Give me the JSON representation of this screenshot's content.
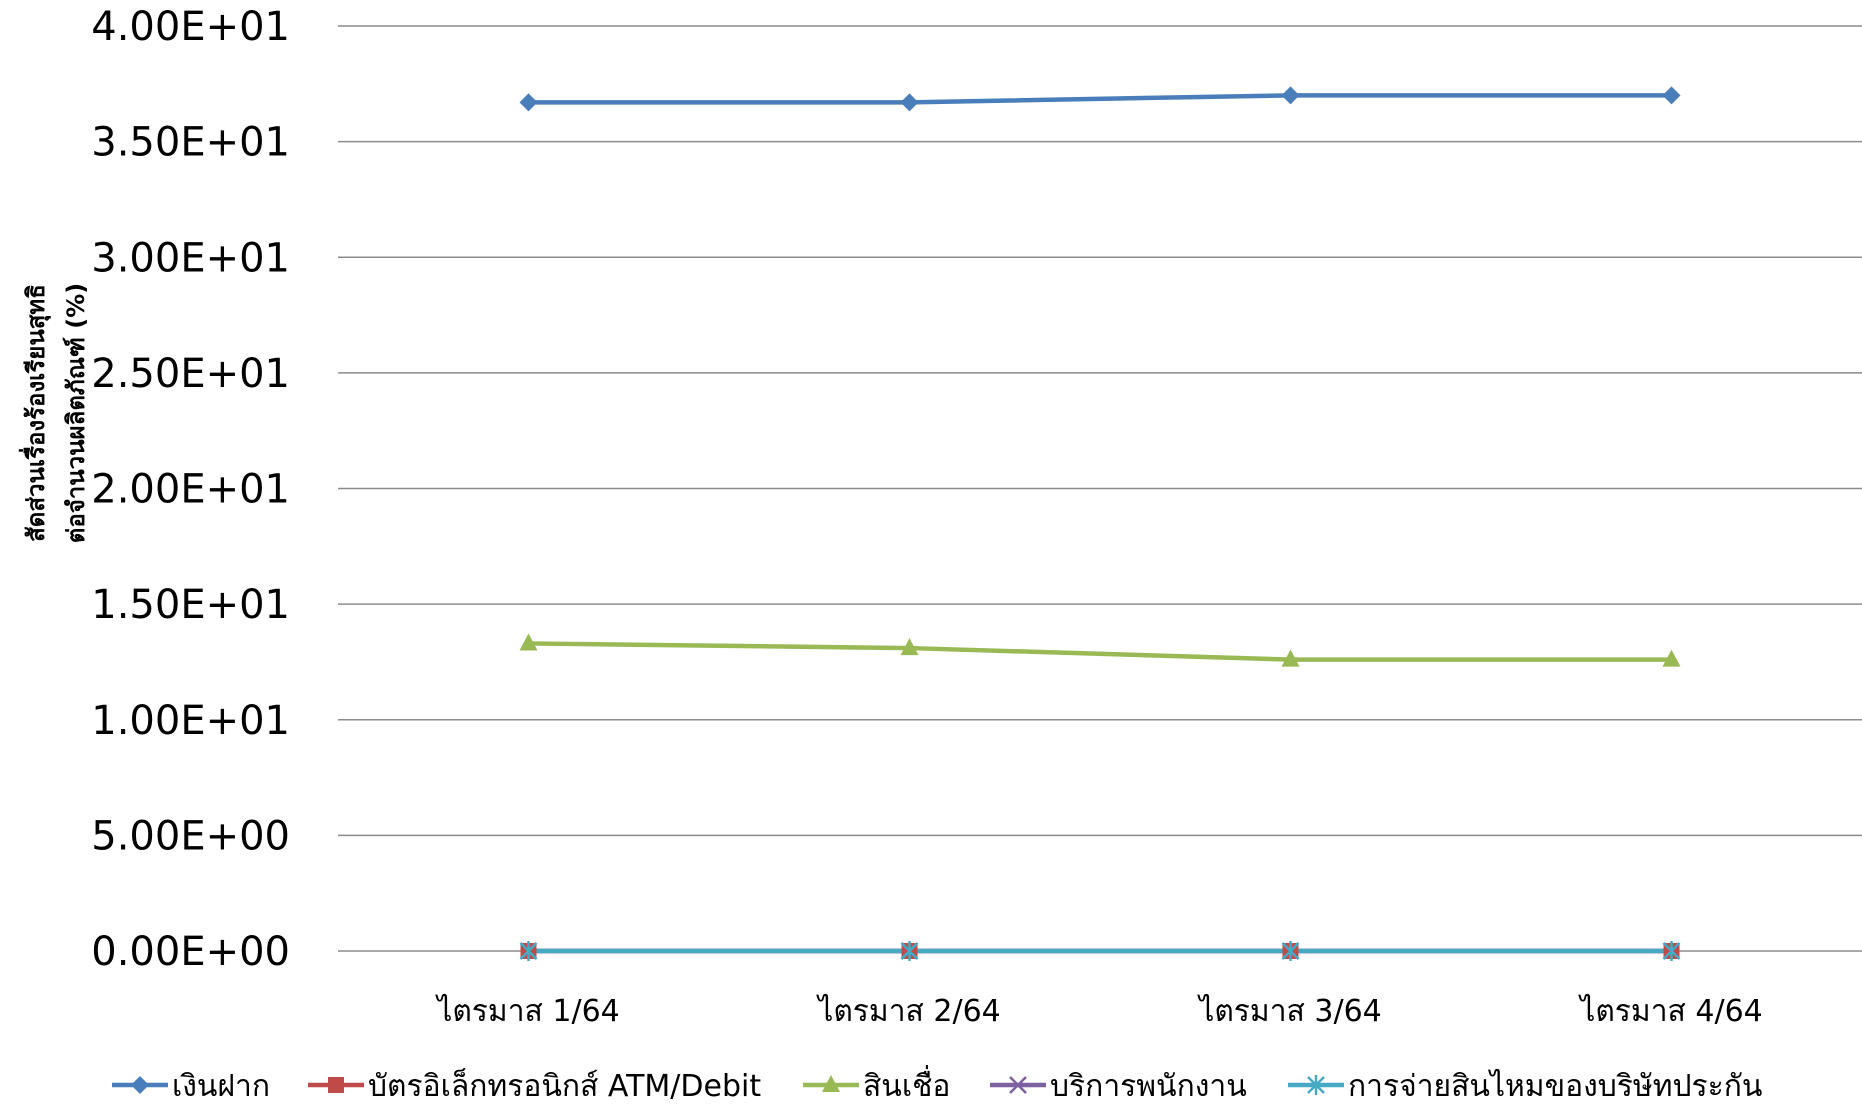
{
  "chart_data": {
    "type": "line",
    "categories": [
      "ไตรมาส 1/64",
      "ไตรมาส 2/64",
      "ไตรมาส 3/64",
      "ไตรมาส 4/64"
    ],
    "ylabel_line1": "สัดส่วนเรื่องร้องเรียนสุทธิ",
    "ylabel_line2": "ต่อจำนวนผลิตภัณฑ์ (%)",
    "ylim": [
      0,
      40
    ],
    "yticks": [
      0,
      5,
      10,
      15,
      20,
      25,
      30,
      35,
      40
    ],
    "ytick_labels": [
      "0.00E+00",
      "5.00E+00",
      "1.00E+01",
      "1.50E+01",
      "2.00E+01",
      "2.50E+01",
      "3.00E+01",
      "3.50E+01",
      "4.00E+01"
    ],
    "grid": true,
    "legend_position": "bottom",
    "series": [
      {
        "name": "เงินฝาก",
        "values": [
          36.7,
          36.7,
          37.0,
          37.0
        ],
        "color": "#4a7ebb",
        "marker": "diamond"
      },
      {
        "name": "บัตรอิเล็กทรอนิกส์ ATM/Debit",
        "values": [
          0,
          0,
          0,
          0
        ],
        "color": "#be4b48",
        "marker": "square"
      },
      {
        "name": "สินเชื่อ",
        "values": [
          13.3,
          13.1,
          12.6,
          12.6
        ],
        "color": "#98b954",
        "marker": "triangle"
      },
      {
        "name": "บริการพนักงาน",
        "values": [
          0,
          0,
          0,
          0
        ],
        "color": "#7d60a0",
        "marker": "x"
      },
      {
        "name": "การจ่ายสินไหมของบริษัทประกัน",
        "values": [
          0,
          0,
          0,
          0
        ],
        "color": "#46aac5",
        "marker": "star"
      }
    ]
  }
}
